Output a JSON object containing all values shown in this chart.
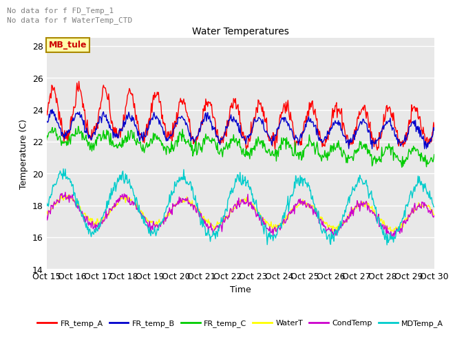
{
  "title": "Water Temperatures",
  "xlabel": "Time",
  "ylabel": "Temperature (C)",
  "ylim": [
    14,
    28.5
  ],
  "yticks": [
    14,
    16,
    18,
    20,
    22,
    24,
    26,
    28
  ],
  "annotations": [
    "No data for f FD_Temp_1",
    "No data for f WaterTemp_CTD"
  ],
  "text_box": "MB_tule",
  "x_tick_labels": [
    "Oct 15",
    "Oct 16",
    "Oct 17",
    "Oct 18",
    "Oct 19",
    "Oct 20",
    "Oct 21",
    "Oct 22",
    "Oct 23",
    "Oct 24",
    "Oct 25",
    "Oct 26",
    "Oct 27",
    "Oct 28",
    "Oct 29",
    "Oct 30"
  ],
  "series": {
    "FR_temp_A": {
      "color": "#ff0000",
      "lw": 1.0
    },
    "FR_temp_B": {
      "color": "#0000cc",
      "lw": 1.0
    },
    "FR_temp_C": {
      "color": "#00cc00",
      "lw": 1.0
    },
    "WaterT": {
      "color": "#ffff00",
      "lw": 1.0
    },
    "CondTemp": {
      "color": "#cc00cc",
      "lw": 1.0
    },
    "MDTemp_A": {
      "color": "#00cccc",
      "lw": 1.0
    }
  },
  "fig_bg": "#ffffff",
  "plot_bg": "#e8e8e8",
  "grid_color": "#ffffff",
  "annot_color": "#808080",
  "title_fontsize": 10,
  "axis_fontsize": 9,
  "tick_fontsize": 9
}
